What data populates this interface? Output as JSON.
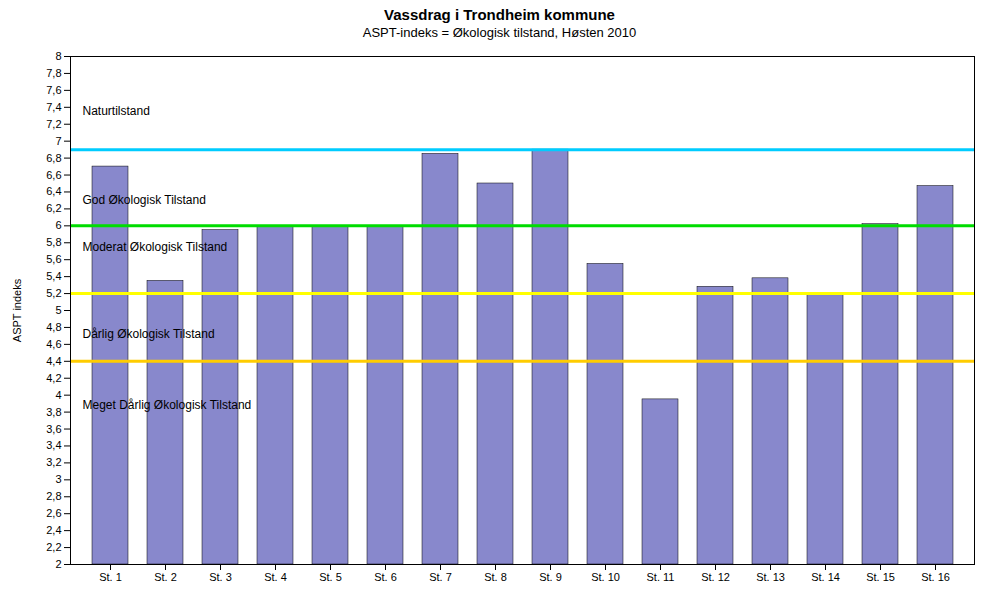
{
  "chart_data": {
    "type": "bar",
    "title": "Vassdrag i Trondheim kommune",
    "subtitle": "ASPT-indeks = Økologisk tilstand, Høsten 2010",
    "ylabel": "ASPT indeks",
    "categories": [
      "St. 1",
      "St. 2",
      "St. 3",
      "St. 4",
      "St. 5",
      "St. 6",
      "St. 7",
      "St. 8",
      "St. 9",
      "St. 10",
      "St. 11",
      "St. 12",
      "St. 13",
      "St. 14",
      "St. 15",
      "St. 16"
    ],
    "values": [
      6.7,
      5.35,
      5.95,
      6.0,
      6.0,
      6.0,
      6.85,
      6.5,
      6.9,
      5.55,
      3.95,
      5.28,
      5.38,
      5.18,
      6.02,
      6.47
    ],
    "color": "#8888cc",
    "ylim": [
      2.0,
      8.0
    ],
    "yticks": [
      2,
      {
        "value": 2.2,
        "label": "2,2"
      },
      {
        "value": 2.4,
        "label": "2,4"
      },
      {
        "value": 2.6,
        "label": "2,6"
      },
      {
        "value": 2.8,
        "label": "2,8"
      },
      3,
      {
        "value": 3.2,
        "label": "3,2"
      },
      {
        "value": 3.4,
        "label": "3,4"
      },
      {
        "value": 3.6,
        "label": "3,6"
      },
      {
        "value": 3.8,
        "label": "3,8"
      },
      4,
      {
        "value": 4.2,
        "label": "4,2"
      },
      {
        "value": 4.4,
        "label": "4,4"
      },
      {
        "value": 4.6,
        "label": "4,6"
      },
      {
        "value": 4.8,
        "label": "4,8"
      },
      5,
      {
        "value": 5.2,
        "label": "5,2"
      },
      {
        "value": 5.4,
        "label": "5,4"
      },
      {
        "value": 5.6,
        "label": "5,6"
      },
      {
        "value": 5.8,
        "label": "5,8"
      },
      6,
      {
        "value": 6.2,
        "label": "6,2"
      },
      {
        "value": 6.4,
        "label": "6,4"
      },
      {
        "value": 6.6,
        "label": "6,6"
      },
      {
        "value": 6.8,
        "label": "6,8"
      },
      7,
      {
        "value": 7.2,
        "label": "7,2"
      },
      {
        "value": 7.4,
        "label": "7,4"
      },
      {
        "value": 7.6,
        "label": "7,6"
      },
      {
        "value": 7.8,
        "label": "7,8"
      },
      8
    ],
    "grid": false,
    "hlines": [
      {
        "value": 6.9,
        "color": "#00ccff"
      },
      {
        "value": 6.0,
        "color": "#00dd00"
      },
      {
        "value": 5.2,
        "color": "#ffff00"
      },
      {
        "value": 4.4,
        "color": "#ffcc00"
      }
    ],
    "annotations": [
      {
        "text": "Naturtilstand",
        "y": 7.35
      },
      {
        "text": "God Økologisk Tilstand",
        "y": 6.3
      },
      {
        "text": "Moderat Økologisk Tilstand",
        "y": 5.75
      },
      {
        "text": "Dårlig Økologisk Tilstand",
        "y": 4.72
      },
      {
        "text": "Meget Dårlig Økologisk Tilstand",
        "y": 3.88
      }
    ]
  }
}
